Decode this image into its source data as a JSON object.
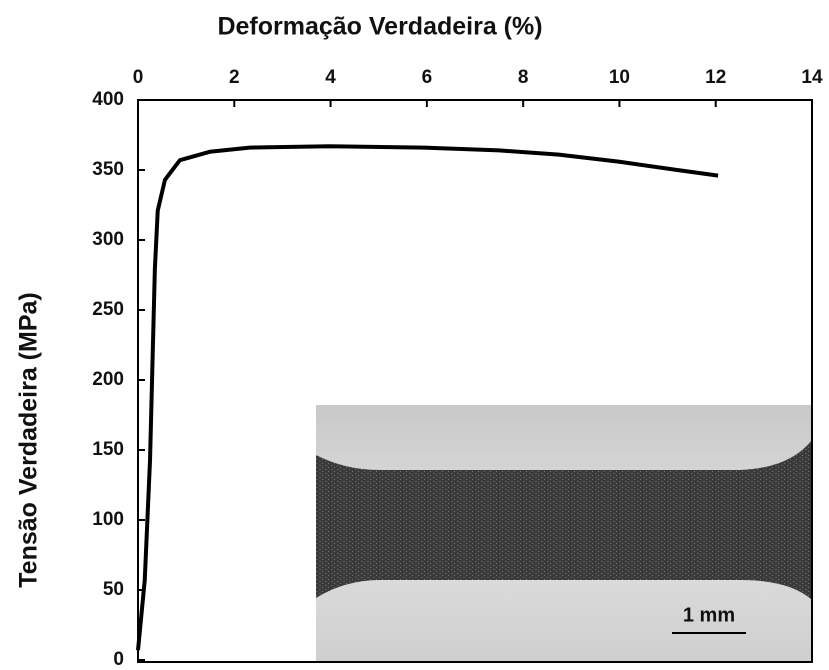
{
  "chart_data": {
    "type": "line",
    "xlabel": "Deformação Verdadeira (%)",
    "ylabel": "Tensão Verdadeira  (MPa)",
    "annotation": "1 mm",
    "x": [
      0,
      0.14,
      0.25,
      0.35,
      0.41,
      0.56,
      0.87,
      1.49,
      2.32,
      3.98,
      5.94,
      7.5,
      8.74,
      9.98,
      11.2,
      12.05
    ],
    "series": [
      {
        "color": "#000000",
        "values": [
          7,
          57,
          143,
          279,
          321,
          343,
          357,
          363,
          366,
          367,
          366,
          364,
          361,
          356,
          350,
          346
        ]
      }
    ],
    "xlim": [
      0,
      14
    ],
    "xticks": [
      0,
      2,
      4,
      6,
      8,
      10,
      12,
      14
    ],
    "ylim": [
      0,
      400
    ],
    "yticks": [
      0,
      50,
      100,
      150,
      200,
      250,
      300,
      350,
      400
    ]
  }
}
